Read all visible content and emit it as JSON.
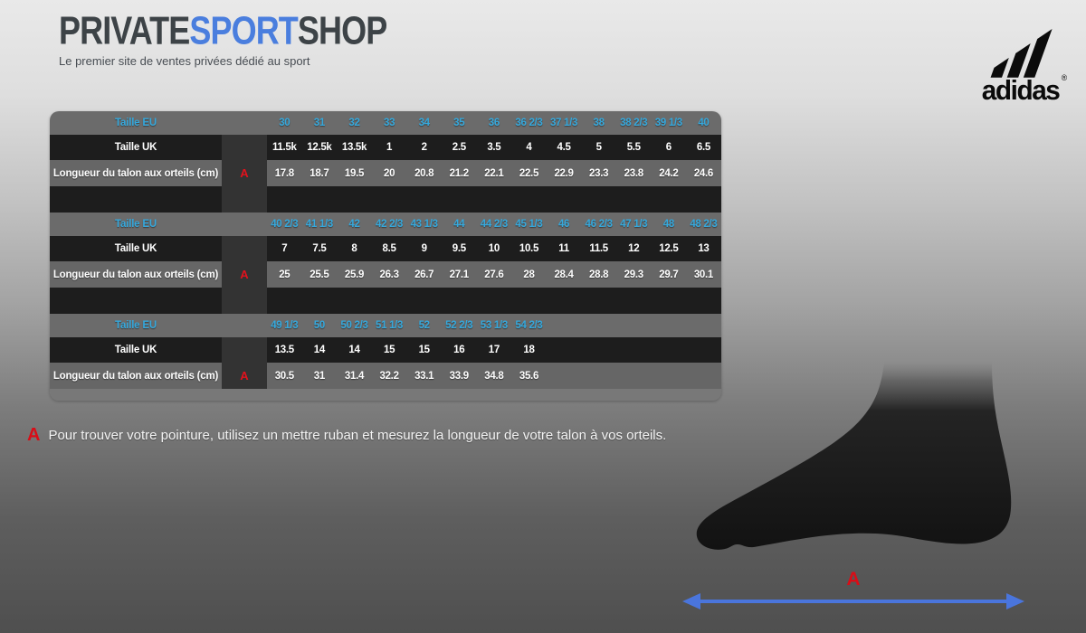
{
  "brand": {
    "name_private": "PRIVATE",
    "name_sport": "SPORT",
    "name_shop": "SHOP",
    "tagline": "Le premier site de ventes privées dédié au sport",
    "partner_logo_word": "adidas",
    "partner_logo_reg": "®",
    "colors": {
      "sport_blue": "#4a7ede",
      "dark_text": "#3d4347"
    }
  },
  "size_chart": {
    "row_labels": {
      "eu": "Taille EU",
      "uk": "Taille UK",
      "length": "Longueur du talon aux orteils (cm)"
    },
    "measure_letter": "A",
    "colors": {
      "eu_text": "#35a8dc",
      "row_dark": "#1d1d1d",
      "row_gray": "#6b6b6b",
      "a_column": "#333333",
      "letter_red": "#e2121d"
    },
    "blocks": [
      {
        "eu": [
          "30",
          "31",
          "32",
          "33",
          "34",
          "35",
          "36",
          "36 2/3",
          "37 1/3",
          "38",
          "38 2/3",
          "39 1/3",
          "40"
        ],
        "uk": [
          "11.5k",
          "12.5k",
          "13.5k",
          "1",
          "2",
          "2.5",
          "3.5",
          "4",
          "4.5",
          "5",
          "5.5",
          "6",
          "6.5"
        ],
        "length_cm": [
          "17.8",
          "18.7",
          "19.5",
          "20",
          "20.8",
          "21.2",
          "22.1",
          "22.5",
          "22.9",
          "23.3",
          "23.8",
          "24.2",
          "24.6"
        ]
      },
      {
        "eu": [
          "40 2/3",
          "41 1/3",
          "42",
          "42 2/3",
          "43 1/3",
          "44",
          "44 2/3",
          "45 1/3",
          "46",
          "46 2/3",
          "47 1/3",
          "48",
          "48 2/3"
        ],
        "uk": [
          "7",
          "7.5",
          "8",
          "8.5",
          "9",
          "9.5",
          "10",
          "10.5",
          "11",
          "11.5",
          "12",
          "12.5",
          "13"
        ],
        "length_cm": [
          "25",
          "25.5",
          "25.9",
          "26.3",
          "26.7",
          "27.1",
          "27.6",
          "28",
          "28.4",
          "28.8",
          "29.3",
          "29.7",
          "30.1"
        ]
      },
      {
        "eu": [
          "49 1/3",
          "50",
          "50 2/3",
          "51 1/3",
          "52",
          "52 2/3",
          "53 1/3",
          "54 2/3"
        ],
        "uk": [
          "13.5",
          "14",
          "14",
          "15",
          "15",
          "16",
          "17",
          "18"
        ],
        "length_cm": [
          "30.5",
          "31",
          "31.4",
          "32.2",
          "33.1",
          "33.9",
          "34.8",
          "35.6"
        ]
      }
    ]
  },
  "note": {
    "letter": "A",
    "text": "Pour trouver votre pointure, utilisez un mettre ruban et mesurez la longueur de votre talon à vos orteils."
  },
  "diagram": {
    "letter": "A",
    "arrow_color": "#4a75dc"
  }
}
